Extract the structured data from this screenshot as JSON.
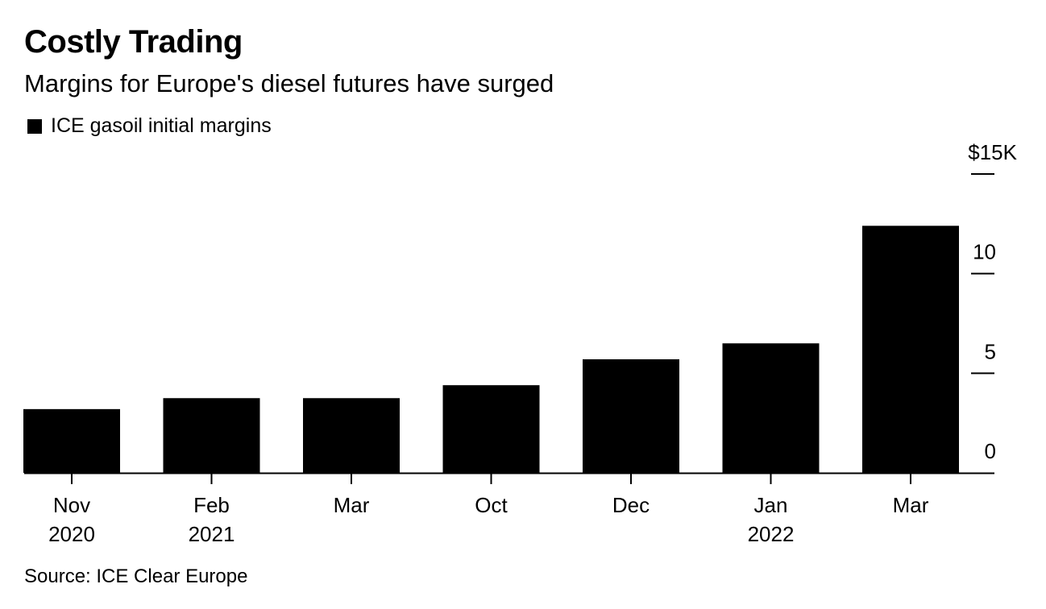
{
  "header": {
    "title": "Costly Trading",
    "subtitle": "Margins for Europe's diesel futures have surged"
  },
  "legend": {
    "label": "ICE gasoil initial margins",
    "swatch_color": "#000000"
  },
  "source": "Source: ICE Clear Europe",
  "chart_data": {
    "type": "bar",
    "title": "Costly Trading",
    "subtitle": "Margins for Europe's diesel futures have surged",
    "categories": [
      "Nov 2020",
      "Feb 2021",
      "Mar",
      "Oct",
      "Dec",
      "Jan 2022",
      "Mar"
    ],
    "x_tick_labels": [
      {
        "month": "Nov",
        "year": "2020"
      },
      {
        "month": "Feb",
        "year": "2021"
      },
      {
        "month": "Mar",
        "year": ""
      },
      {
        "month": "Oct",
        "year": ""
      },
      {
        "month": "Dec",
        "year": ""
      },
      {
        "month": "Jan",
        "year": "2022"
      },
      {
        "month": "Mar",
        "year": ""
      }
    ],
    "series": [
      {
        "name": "ICE gasoil initial margins",
        "values": [
          3200,
          3750,
          3750,
          4400,
          5700,
          6500,
          12400
        ],
        "color": "#000000"
      }
    ],
    "y_ticks": [
      0,
      5,
      10,
      15
    ],
    "y_tick_labels": [
      "0",
      "5",
      "10",
      "$15K"
    ],
    "ylim": [
      0,
      15000
    ],
    "y_axis_position": "right",
    "grid": false,
    "legend_position": "top-left"
  }
}
